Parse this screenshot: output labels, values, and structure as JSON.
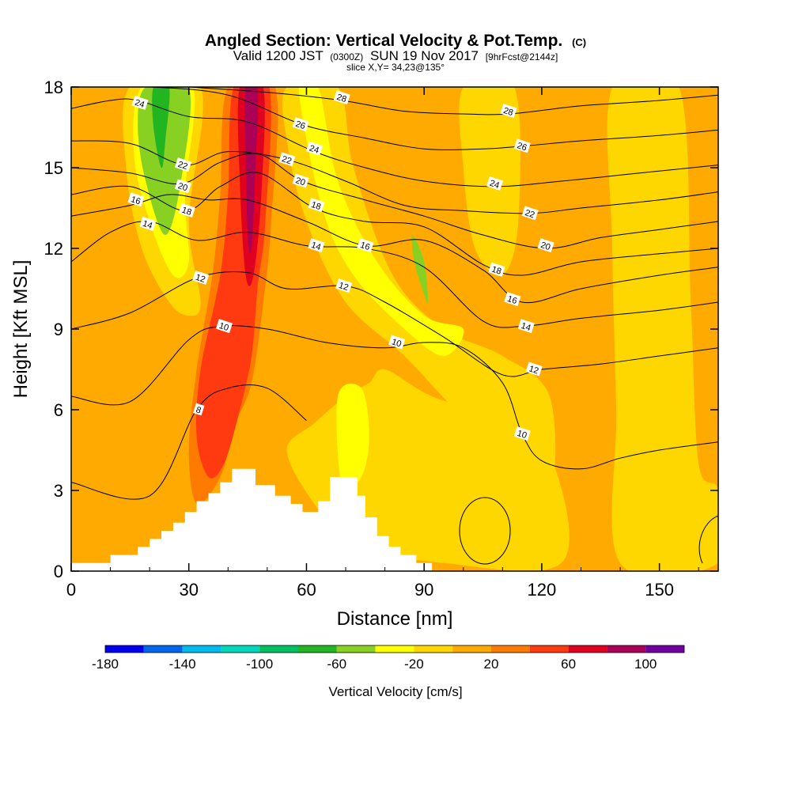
{
  "title": {
    "main": "Angled Section: Vertical Velocity & Pot.Temp.",
    "mark": "(C)",
    "valid_prefix": "Valid 1200 JST",
    "valid_zulu": "(0300Z)",
    "valid_date": "SUN 19 Nov 2017",
    "valid_fcst": "[9hrFcst@2144z]",
    "slice": "slice X,Y= 34,23@135°"
  },
  "chart_data": {
    "type": "heatmap",
    "xlabel": "Distance [nm]",
    "ylabel": "Height [Kft MSL]",
    "xlim": [
      0,
      165
    ],
    "ylim": [
      0,
      18
    ],
    "x_ticks": [
      "0",
      "30",
      "60",
      "90",
      "120",
      "150"
    ],
    "x_tick_values": [
      0,
      30,
      60,
      90,
      120,
      150
    ],
    "y_ticks": [
      "0",
      "3",
      "6",
      "9",
      "12",
      "15",
      "18"
    ],
    "y_tick_values": [
      0,
      3,
      6,
      9,
      12,
      15,
      18
    ],
    "grid": false,
    "background_field": "Vertical Velocity [cm/s]",
    "contour_field": "Potential Temperature (C)",
    "colorbar": {
      "label": "Vertical Velocity [cm/s]",
      "tick_labels": [
        "-180",
        "-140",
        "-100",
        "-60",
        "-20",
        "20",
        "60",
        "100"
      ],
      "tick_values": [
        -180,
        -140,
        -100,
        -60,
        -20,
        20,
        60,
        100
      ],
      "levels": [
        -180,
        -160,
        -140,
        -120,
        -100,
        -80,
        -60,
        -40,
        -20,
        0,
        20,
        40,
        60,
        80,
        100,
        120
      ],
      "colors": [
        "#0000ee",
        "#0066ee",
        "#00bbee",
        "#00d9bb",
        "#00c060",
        "#22b522",
        "#88d022",
        "#ffff00",
        "#ffd700",
        "#ffaa00",
        "#ff7a00",
        "#ff3a10",
        "#e00020",
        "#aa0055",
        "#7000a0"
      ]
    },
    "velocity_regions": [
      {
        "name": "background",
        "level": 0,
        "color": "#ffaa00",
        "x": [
          0,
          165
        ],
        "z": [
          0,
          18
        ]
      },
      {
        "name": "upper-left-updraft-moderate",
        "level": -20,
        "color": "#ffd700",
        "points": [
          [
            15,
            18
          ],
          [
            33,
            18
          ],
          [
            30,
            13
          ],
          [
            33,
            10
          ],
          [
            30,
            9.5
          ],
          [
            25,
            10
          ],
          [
            18,
            12
          ],
          [
            14,
            15
          ]
        ]
      },
      {
        "name": "upper-left-downdraft-core",
        "level": -40,
        "color": "#ffff00",
        "points": [
          [
            18,
            18
          ],
          [
            31,
            18
          ],
          [
            29,
            14
          ],
          [
            30,
            11.5
          ],
          [
            26,
            11
          ],
          [
            20,
            13
          ],
          [
            16,
            15.5
          ]
        ]
      },
      {
        "name": "upper-left-downdraft-strong",
        "level": -60,
        "color": "#88d022",
        "points": [
          [
            19,
            18
          ],
          [
            30,
            18
          ],
          [
            28,
            14.5
          ],
          [
            24,
            12.5
          ],
          [
            19,
            14.5
          ],
          [
            17,
            16.5
          ]
        ]
      },
      {
        "name": "upper-left-downdraft-peak",
        "level": -80,
        "color": "#22b522",
        "points": [
          [
            21,
            18
          ],
          [
            25,
            18
          ],
          [
            24,
            16
          ],
          [
            23,
            15
          ],
          [
            21,
            16.5
          ]
        ]
      },
      {
        "name": "main-updraft-outer",
        "level": 40,
        "color": "#ff7a00",
        "points": [
          [
            40,
            18
          ],
          [
            52,
            18
          ],
          [
            51,
            13
          ],
          [
            49,
            10
          ],
          [
            46,
            7
          ],
          [
            42,
            5.5
          ],
          [
            38,
            3.5
          ],
          [
            32,
            2.5
          ],
          [
            30,
            4.5
          ],
          [
            32,
            7.5
          ],
          [
            36,
            11
          ],
          [
            38,
            14
          ]
        ]
      },
      {
        "name": "main-updraft-middle",
        "level": 60,
        "color": "#ff3a10",
        "points": [
          [
            41.5,
            18
          ],
          [
            50.5,
            18
          ],
          [
            49.5,
            13
          ],
          [
            47.5,
            10.5
          ],
          [
            46,
            8
          ],
          [
            43,
            6
          ],
          [
            39,
            4
          ],
          [
            35,
            3.5
          ],
          [
            32,
            5
          ],
          [
            33,
            7.5
          ],
          [
            38,
            11
          ],
          [
            40,
            14
          ]
        ]
      },
      {
        "name": "main-updraft-inner",
        "level": 80,
        "color": "#e00020",
        "points": [
          [
            43,
            18
          ],
          [
            49,
            18
          ],
          [
            48.5,
            14
          ],
          [
            46.5,
            11
          ],
          [
            44.5,
            11
          ],
          [
            43,
            14.5
          ]
        ]
      },
      {
        "name": "main-updraft-core",
        "level": 100,
        "color": "#aa0055",
        "points": [
          [
            44.5,
            18
          ],
          [
            47.5,
            18
          ],
          [
            47,
            15
          ],
          [
            46,
            12
          ],
          [
            45,
            12.5
          ],
          [
            44.5,
            15.5
          ]
        ]
      },
      {
        "name": "right-slant-downdraft",
        "level": -20,
        "color": "#ffd700",
        "points": [
          [
            55,
            18
          ],
          [
            68,
            18
          ],
          [
            72,
            15
          ],
          [
            82,
            11
          ],
          [
            95,
            9
          ],
          [
            110,
            8
          ],
          [
            122,
            6.5
          ],
          [
            122,
            3
          ],
          [
            110,
            4.5
          ],
          [
            98,
            6
          ],
          [
            85,
            8
          ],
          [
            70,
            10
          ],
          [
            60,
            13
          ],
          [
            55,
            16
          ]
        ]
      },
      {
        "name": "right-slant-downdraft-core",
        "level": -40,
        "color": "#ffff00",
        "points": [
          [
            58,
            18
          ],
          [
            63,
            18
          ],
          [
            68,
            14.5
          ],
          [
            78,
            11.5
          ],
          [
            90,
            9.5
          ],
          [
            100,
            9
          ],
          [
            95,
            8
          ],
          [
            85,
            9
          ],
          [
            72,
            11
          ],
          [
            64,
            13.5
          ]
        ]
      },
      {
        "name": "right-slant-downdraft-peak",
        "level": -60,
        "color": "#88d022",
        "points": [
          [
            87,
            12.5
          ],
          [
            90,
            11.5
          ],
          [
            91,
            10
          ],
          [
            89.5,
            10.5
          ],
          [
            87.5,
            11.5
          ]
        ]
      },
      {
        "name": "low-level-downdraft",
        "level": -20,
        "color": "#ffd700",
        "points": [
          [
            55,
            4.5
          ],
          [
            62,
            5.5
          ],
          [
            70,
            6.5
          ],
          [
            76,
            7
          ],
          [
            80,
            7.5
          ],
          [
            92,
            6.5
          ],
          [
            112,
            5.5
          ],
          [
            123,
            4
          ],
          [
            125,
            0.3
          ],
          [
            95,
            0.3
          ],
          [
            72,
            1
          ],
          [
            62,
            2.5
          ]
        ]
      },
      {
        "name": "low-level-downdraft-core",
        "level": -40,
        "color": "#ffff00",
        "points": [
          [
            68,
            6.5
          ],
          [
            74,
            6.8
          ],
          [
            76,
            5
          ],
          [
            74,
            3.5
          ],
          [
            69,
            3.2
          ]
        ]
      },
      {
        "name": "right-edge-band",
        "level": -20,
        "color": "#ffd700",
        "points": [
          [
            138,
            18
          ],
          [
            155,
            18
          ],
          [
            158,
            10
          ],
          [
            160,
            4
          ],
          [
            165,
            3
          ],
          [
            165,
            0.3
          ],
          [
            140,
            0.3
          ],
          [
            139,
            6
          ],
          [
            138,
            12
          ]
        ]
      },
      {
        "name": "upper-right-band",
        "level": -20,
        "color": "#ffd700",
        "points": [
          [
            100,
            18
          ],
          [
            113,
            18
          ],
          [
            114,
            13
          ],
          [
            110,
            11
          ],
          [
            103,
            12
          ],
          [
            100,
            15
          ]
        ]
      }
    ],
    "terrain": {
      "fill": "#ffffff",
      "x": [
        0,
        10,
        10,
        17,
        17,
        20,
        20,
        23,
        23,
        26,
        26,
        29,
        29,
        32,
        32,
        35,
        35,
        38,
        38,
        41,
        41,
        44,
        44,
        47,
        47,
        52,
        52,
        56,
        56,
        59,
        59,
        63,
        63,
        66,
        66,
        69,
        69,
        73,
        73,
        75,
        75,
        78,
        78,
        81,
        81,
        84,
        84,
        88,
        88,
        92,
        92,
        165
      ],
      "y": [
        0.3,
        0.3,
        0.6,
        0.6,
        0.9,
        0.9,
        1.2,
        1.2,
        1.5,
        1.5,
        1.8,
        1.8,
        2.2,
        2.2,
        2.6,
        2.6,
        2.9,
        2.9,
        3.3,
        3.3,
        3.8,
        3.8,
        3.8,
        3.8,
        3.2,
        3.2,
        2.8,
        2.8,
        2.5,
        2.5,
        2.2,
        2.2,
        2.6,
        2.6,
        3.5,
        3.5,
        3.5,
        3.5,
        2.8,
        2.8,
        2.0,
        2.0,
        1.3,
        1.3,
        0.9,
        0.9,
        0.6,
        0.6,
        0.3,
        0.3,
        0.0,
        0.0
      ]
    },
    "theta_contours": [
      {
        "level": 8,
        "label": "8",
        "x": [
          0,
          20,
          32,
          40,
          50,
          60
        ],
        "y": [
          3.3,
          2.8,
          6.0,
          6.8,
          6.8,
          5.6
        ]
      },
      {
        "level": 10,
        "label": "10",
        "x": [
          0,
          15,
          30,
          38,
          50,
          65,
          80,
          90,
          100,
          110,
          115,
          120,
          130,
          140,
          150,
          165
        ],
        "y": [
          6.5,
          6.3,
          8.6,
          9.1,
          9.0,
          8.5,
          8.3,
          8.5,
          8.3,
          7.0,
          5.1,
          4.1,
          3.8,
          4.2,
          4.5,
          4.8
        ]
      },
      {
        "level": 12,
        "label": "12",
        "x": [
          0,
          15,
          32,
          45,
          55,
          70,
          80,
          95,
          110,
          120,
          135,
          150,
          165
        ],
        "y": [
          9.0,
          9.6,
          10.9,
          11.1,
          10.5,
          10.6,
          10.0,
          8.7,
          7.3,
          7.5,
          7.7,
          8.0,
          8.3
        ]
      },
      {
        "level": 14,
        "label": "14",
        "x": [
          0,
          10,
          20,
          32,
          45,
          60,
          75,
          90,
          105,
          115,
          130,
          150,
          165
        ],
        "y": [
          11.5,
          12.6,
          13.0,
          12.3,
          12.6,
          12.1,
          12.0,
          11.3,
          9.3,
          9.1,
          9.4,
          9.7,
          10.0
        ]
      },
      {
        "level": 16,
        "label": "16",
        "x": [
          0,
          15,
          25,
          35,
          45,
          60,
          75,
          90,
          105,
          115,
          130,
          150,
          165
        ],
        "y": [
          13.2,
          13.6,
          14.0,
          13.8,
          13.8,
          13.0,
          12.1,
          12.3,
          11.2,
          10.0,
          10.5,
          11.0,
          11.3
        ]
      },
      {
        "level": 18,
        "label": "18",
        "x": [
          0,
          15,
          29,
          38,
          48,
          62,
          75,
          90,
          105,
          115,
          130,
          150,
          165
        ],
        "y": [
          14.0,
          14.3,
          13.4,
          14.3,
          14.8,
          13.5,
          13.0,
          12.8,
          11.4,
          11.0,
          11.5,
          11.8,
          12.0
        ]
      },
      {
        "level": 20,
        "label": "20",
        "x": [
          0,
          15,
          28,
          38,
          48,
          59,
          75,
          90,
          105,
          121,
          135,
          150,
          165
        ],
        "y": [
          15.0,
          14.8,
          14.4,
          15.2,
          15.5,
          14.5,
          13.8,
          13.2,
          12.5,
          12.0,
          12.4,
          12.7,
          13.0
        ]
      },
      {
        "level": 22,
        "label": "22",
        "x": [
          0,
          15,
          29,
          40,
          55,
          70,
          85,
          100,
          117,
          130,
          150,
          165
        ],
        "y": [
          16.0,
          15.9,
          15.1,
          15.6,
          15.3,
          14.5,
          13.6,
          13.4,
          13.3,
          13.5,
          13.8,
          14.1
        ]
      },
      {
        "level": 24,
        "label": "24",
        "x": [
          0,
          10,
          17,
          30,
          45,
          62,
          75,
          90,
          108,
          125,
          145,
          165
        ],
        "y": [
          17.2,
          17.5,
          17.5,
          16.9,
          16.7,
          15.6,
          15.0,
          14.5,
          14.3,
          14.5,
          14.8,
          15.1
        ]
      },
      {
        "level": 26,
        "label": "26",
        "x": [
          0,
          20,
          40,
          59,
          75,
          90,
          105,
          115,
          130,
          150,
          165
        ],
        "y": [
          18.0,
          18.0,
          17.7,
          16.6,
          16.1,
          15.7,
          15.7,
          15.8,
          16.0,
          16.2,
          16.4
        ]
      },
      {
        "level": 28,
        "label": "28",
        "x": [
          30,
          50,
          69,
          85,
          100,
          112,
          130,
          150,
          165
        ],
        "y": [
          18.0,
          17.8,
          17.5,
          17.1,
          17.0,
          17.0,
          17.3,
          17.5,
          17.7
        ]
      }
    ],
    "theta_labels": [
      {
        "text": "24",
        "x": 17.5,
        "y": 17.4
      },
      {
        "text": "22",
        "x": 28.5,
        "y": 15.1
      },
      {
        "text": "20",
        "x": 28.5,
        "y": 14.3
      },
      {
        "text": "16",
        "x": 16.5,
        "y": 13.8
      },
      {
        "text": "18",
        "x": 29.5,
        "y": 13.4
      },
      {
        "text": "14",
        "x": 19.5,
        "y": 12.9
      },
      {
        "text": "12",
        "x": 33,
        "y": 10.9
      },
      {
        "text": "10",
        "x": 39,
        "y": 9.1
      },
      {
        "text": "8",
        "x": 32.5,
        "y": 6.0
      },
      {
        "text": "28",
        "x": 69,
        "y": 17.6
      },
      {
        "text": "26",
        "x": 58.5,
        "y": 16.6
      },
      {
        "text": "24",
        "x": 62,
        "y": 15.7
      },
      {
        "text": "22",
        "x": 55,
        "y": 15.3
      },
      {
        "text": "20",
        "x": 58.5,
        "y": 14.5
      },
      {
        "text": "18",
        "x": 62.5,
        "y": 13.6
      },
      {
        "text": "14",
        "x": 62.5,
        "y": 12.1
      },
      {
        "text": "16",
        "x": 75,
        "y": 12.1
      },
      {
        "text": "12",
        "x": 69.5,
        "y": 10.6
      },
      {
        "text": "10",
        "x": 83,
        "y": 8.5
      },
      {
        "text": "28",
        "x": 111.5,
        "y": 17.1
      },
      {
        "text": "26",
        "x": 115,
        "y": 15.8
      },
      {
        "text": "24",
        "x": 108,
        "y": 14.4
      },
      {
        "text": "22",
        "x": 117,
        "y": 13.3
      },
      {
        "text": "20",
        "x": 121,
        "y": 12.1
      },
      {
        "text": "18",
        "x": 108.5,
        "y": 11.2
      },
      {
        "text": "16",
        "x": 112.5,
        "y": 10.1
      },
      {
        "text": "14",
        "x": 116,
        "y": 9.1
      },
      {
        "text": "12",
        "x": 118,
        "y": 7.5
      },
      {
        "text": "10",
        "x": 115,
        "y": 5.1
      }
    ]
  }
}
